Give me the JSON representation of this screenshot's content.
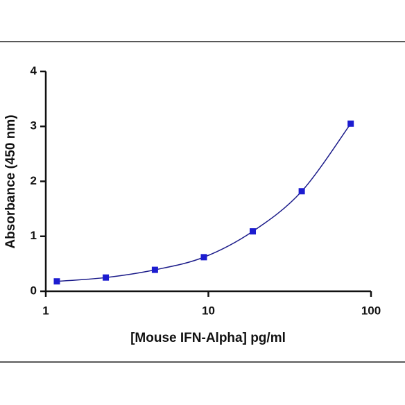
{
  "chart_data": {
    "type": "scatter",
    "x_label": "[Mouse IFN-Alpha] pg/ml",
    "y_label": "Absorbance (450 nm)",
    "x": [
      1.17,
      2.34,
      4.69,
      9.38,
      18.75,
      37.5,
      75
    ],
    "values": [
      0.18,
      0.25,
      0.39,
      0.62,
      1.09,
      1.82,
      3.05
    ],
    "color": "#1c1cd0",
    "line_color": "#1c1c8a",
    "x_scale": "log",
    "xlim": [
      1,
      100
    ],
    "xticks": [
      1,
      10,
      100
    ],
    "ylim": [
      0,
      4
    ],
    "yticks": [
      0,
      1,
      2,
      3,
      4
    ]
  }
}
